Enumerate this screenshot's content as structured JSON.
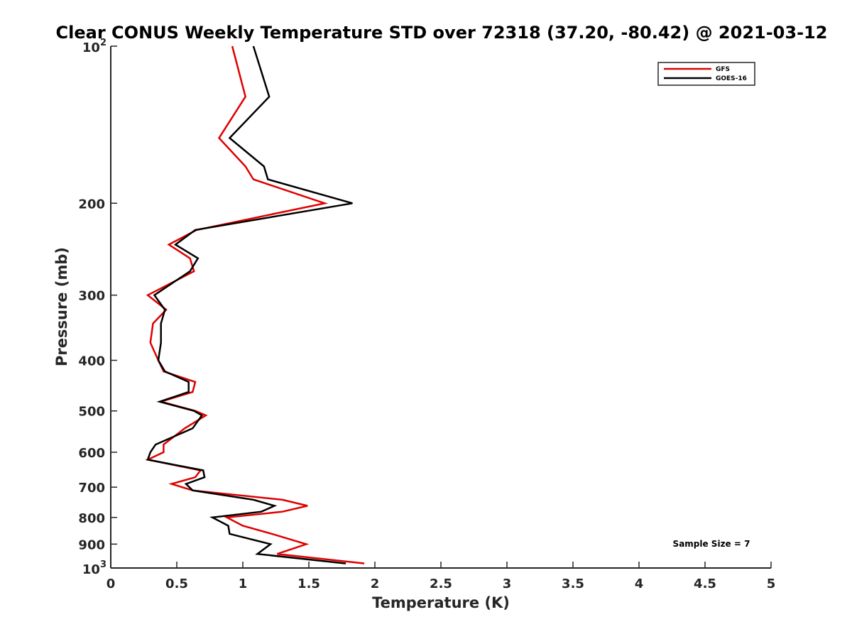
{
  "chart_data": {
    "type": "line",
    "title": "Clear CONUS Weekly Temperature STD over 72318 (37.20, -80.42) @ 2021-03-12",
    "xlabel": "Temperature (K)",
    "ylabel": "Pressure (mb)",
    "xlim": [
      0,
      5
    ],
    "ylim": [
      100,
      1000
    ],
    "y_scale": "log",
    "y_reversed": true,
    "x_ticks": [
      0,
      0.5,
      1,
      1.5,
      2,
      2.5,
      3,
      3.5,
      4,
      4.5,
      5
    ],
    "x_tick_labels": [
      "0",
      "0.5",
      "1",
      "1.5",
      "2",
      "2.5",
      "3",
      "3.5",
      "4",
      "4.5",
      "5"
    ],
    "y_ticks": [
      200,
      300,
      400,
      500,
      600,
      700,
      800,
      900
    ],
    "y_tick_labels": [
      "200",
      "300",
      "400",
      "500",
      "600",
      "700",
      "800",
      "900"
    ],
    "y_ends": [
      {
        "value": 100,
        "base": "10",
        "exp": "2"
      },
      {
        "value": 1000,
        "base": "10",
        "exp": "3"
      }
    ],
    "grid": false,
    "legend_position": "top-right",
    "annotation": "Sample Size = 7",
    "series": [
      {
        "name": "GFS",
        "color": "#e00000",
        "points": [
          [
            0.92,
            100
          ],
          [
            1.02,
            125
          ],
          [
            0.82,
            150
          ],
          [
            1.02,
            170
          ],
          [
            1.08,
            180
          ],
          [
            1.62,
            200
          ],
          [
            0.65,
            225
          ],
          [
            0.44,
            240
          ],
          [
            0.6,
            255
          ],
          [
            0.63,
            270
          ],
          [
            0.28,
            300
          ],
          [
            0.42,
            320
          ],
          [
            0.32,
            340
          ],
          [
            0.3,
            370
          ],
          [
            0.36,
            400
          ],
          [
            0.4,
            420
          ],
          [
            0.64,
            440
          ],
          [
            0.62,
            460
          ],
          [
            0.38,
            480
          ],
          [
            0.64,
            500
          ],
          [
            0.72,
            510
          ],
          [
            0.56,
            540
          ],
          [
            0.4,
            580
          ],
          [
            0.4,
            600
          ],
          [
            0.28,
            620
          ],
          [
            0.68,
            650
          ],
          [
            0.64,
            670
          ],
          [
            0.46,
            690
          ],
          [
            0.62,
            710
          ],
          [
            1.3,
            740
          ],
          [
            1.49,
            760
          ],
          [
            1.3,
            780
          ],
          [
            0.88,
            800
          ],
          [
            1.0,
            830
          ],
          [
            1.22,
            860
          ],
          [
            1.48,
            900
          ],
          [
            1.26,
            940
          ],
          [
            1.92,
            980
          ]
        ]
      },
      {
        "name": "GOES-16",
        "color": "#000000",
        "points": [
          [
            1.08,
            100
          ],
          [
            1.2,
            125
          ],
          [
            0.9,
            150
          ],
          [
            1.16,
            170
          ],
          [
            1.19,
            180
          ],
          [
            1.83,
            200
          ],
          [
            0.64,
            225
          ],
          [
            0.49,
            240
          ],
          [
            0.66,
            255
          ],
          [
            0.6,
            270
          ],
          [
            0.33,
            300
          ],
          [
            0.41,
            320
          ],
          [
            0.38,
            340
          ],
          [
            0.38,
            370
          ],
          [
            0.36,
            400
          ],
          [
            0.41,
            420
          ],
          [
            0.59,
            440
          ],
          [
            0.59,
            460
          ],
          [
            0.37,
            480
          ],
          [
            0.63,
            500
          ],
          [
            0.69,
            510
          ],
          [
            0.62,
            540
          ],
          [
            0.34,
            580
          ],
          [
            0.3,
            600
          ],
          [
            0.28,
            620
          ],
          [
            0.7,
            650
          ],
          [
            0.71,
            670
          ],
          [
            0.57,
            690
          ],
          [
            0.62,
            710
          ],
          [
            1.08,
            740
          ],
          [
            1.24,
            760
          ],
          [
            1.14,
            780
          ],
          [
            0.77,
            800
          ],
          [
            0.89,
            830
          ],
          [
            0.9,
            860
          ],
          [
            1.21,
            900
          ],
          [
            1.11,
            940
          ],
          [
            1.78,
            980
          ]
        ]
      }
    ]
  }
}
